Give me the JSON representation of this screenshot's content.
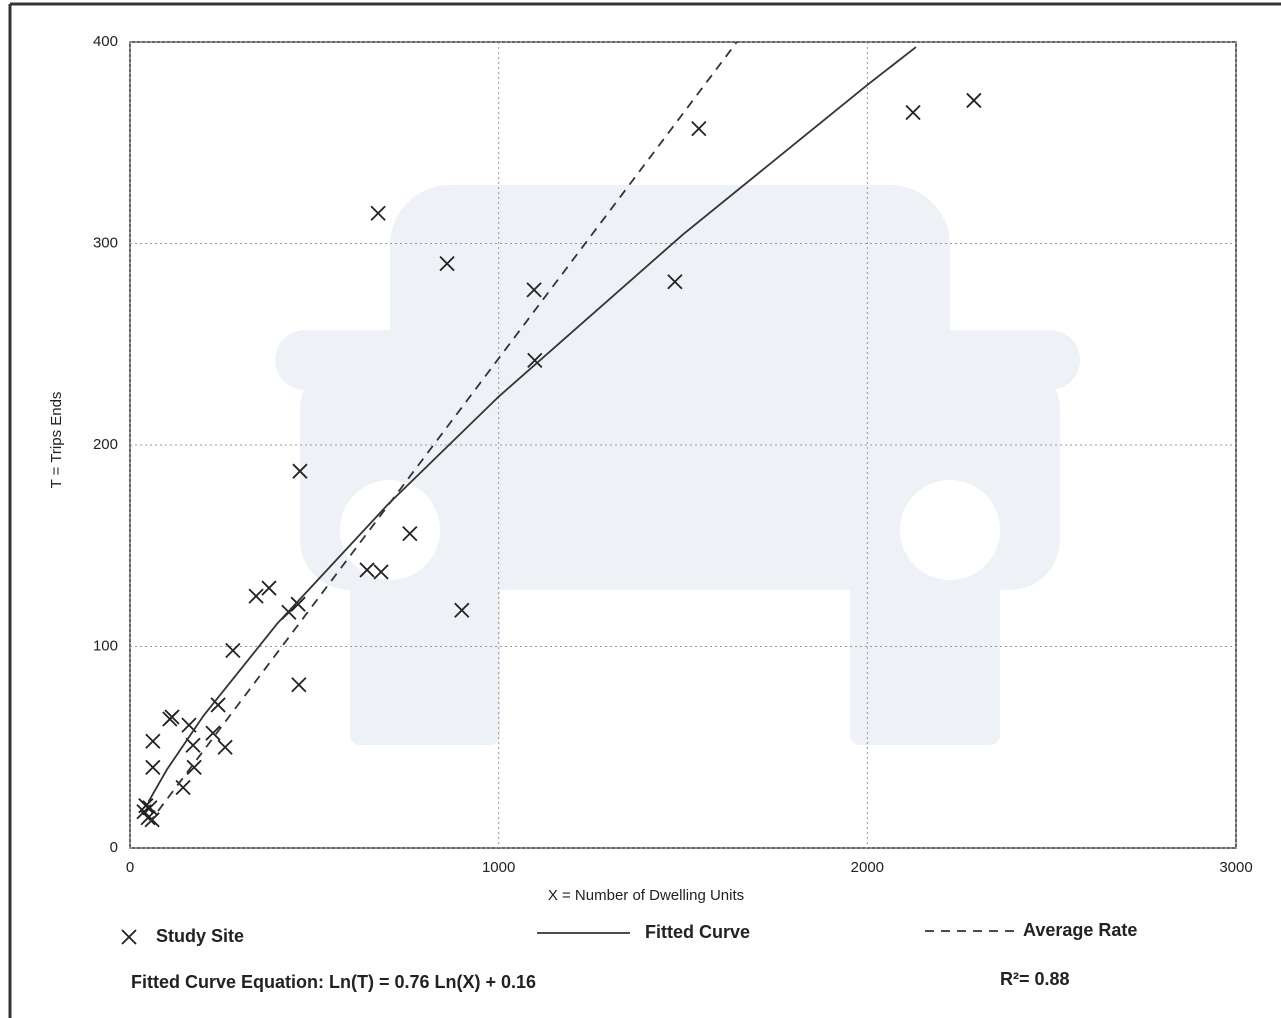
{
  "chart_data": {
    "type": "scatter",
    "x_label": "X = Number of Dwelling Units",
    "y_label": "T = Trips Ends",
    "equation": "Fitted Curve Equation: Ln(T) = 0.76 Ln(X) + 0.16",
    "r_squared": "R²= 0.88",
    "xlim": [
      0,
      3000
    ],
    "ylim": [
      0,
      400
    ],
    "xticks": [
      0,
      1000,
      2000,
      3000
    ],
    "yticks": [
      0,
      100,
      200,
      300,
      400
    ],
    "grid": true,
    "series": [
      {
        "name": "Study Site",
        "style": "marker",
        "color": "#222",
        "x": [
          38,
          49,
          60,
          54,
          43,
          62,
          62,
          108,
          114,
          144,
          160,
          171,
          174,
          225,
          239,
          258,
          279,
          342,
          377,
          431,
          456,
          458,
          461,
          643,
          681,
          673,
          759,
          860,
          900,
          1096,
          1098,
          1478,
          1543,
          2124,
          2289
        ],
        "values": [
          18,
          15,
          14,
          20,
          21,
          53,
          40,
          64,
          65,
          30,
          61,
          51,
          40,
          57,
          71,
          50,
          98,
          125,
          129,
          117,
          121,
          81,
          187,
          138,
          137,
          315,
          156,
          290,
          118,
          277,
          242,
          281,
          357,
          365,
          371
        ]
      },
      {
        "name": "Fitted Curve",
        "style": "solid",
        "color": "#333",
        "x": [
          50,
          100,
          200,
          400,
          700,
          1000,
          1500,
          2000,
          2132
        ],
        "values": [
          22.9,
          38.9,
          65.8,
          111.5,
          170.6,
          224,
          304.5,
          378.7,
          397.5
        ]
      },
      {
        "name": "Average Rate",
        "style": "dashed",
        "color": "#333",
        "x": [
          50,
          1646
        ],
        "values": [
          12,
          400
        ]
      }
    ]
  }
}
